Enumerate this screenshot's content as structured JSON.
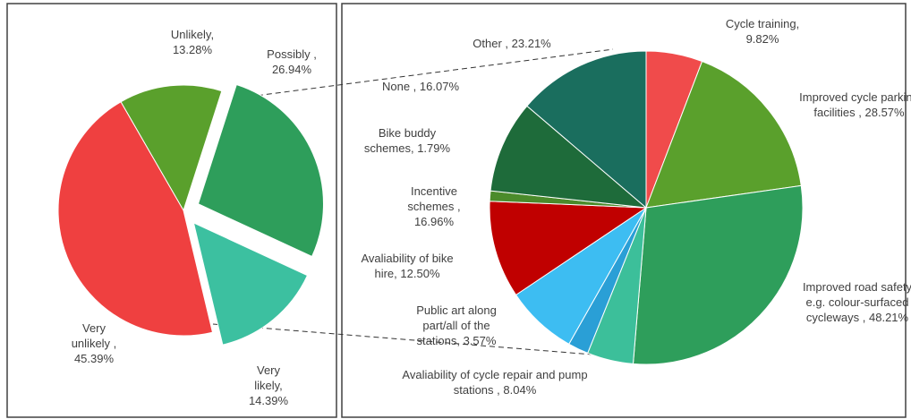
{
  "chart_data": [
    {
      "type": "pie",
      "categories": [
        "Unlikely,",
        "Possibly ,",
        "Very likely,",
        "Very unlikely ,"
      ],
      "values": [
        13.28,
        26.94,
        14.39,
        45.39
      ],
      "value_labels": [
        "13.28%",
        "26.94%",
        "14.39%",
        "45.39%"
      ],
      "colors": [
        "#5aa02c",
        "#2e9e5b",
        "#3cc0a0",
        "#ef4040"
      ]
    },
    {
      "type": "pie",
      "categories": [
        "Cycle training,",
        "Improved cycle parking facilities ,",
        "Improved road safety e.g. colour-surfaced cycleways ,",
        "Avaliability of cycle repair and pump stations ,",
        "Public art along part/all of the stations,",
        "Avaliability of bike hire,",
        "Incentive schemes ,",
        "Bike buddy schemes,",
        "None ,",
        "Other ,"
      ],
      "values": [
        9.82,
        28.57,
        48.21,
        8.04,
        3.57,
        12.5,
        16.96,
        1.79,
        16.07,
        23.21
      ],
      "value_labels": [
        "9.82%",
        "28.57%",
        "48.21%",
        "8.04%",
        "3.57%",
        "12.50%",
        "16.96%",
        "1.79%",
        "16.07%",
        "23.21%"
      ],
      "colors": [
        "#f04b4b",
        "#5aa02c",
        "#2e9e5b",
        "#3cbf9a",
        "#2a9fd6",
        "#3dbdf2",
        "#c00000",
        "#4b8b2b",
        "#1e6b3a",
        "#1a6e5e"
      ]
    }
  ]
}
